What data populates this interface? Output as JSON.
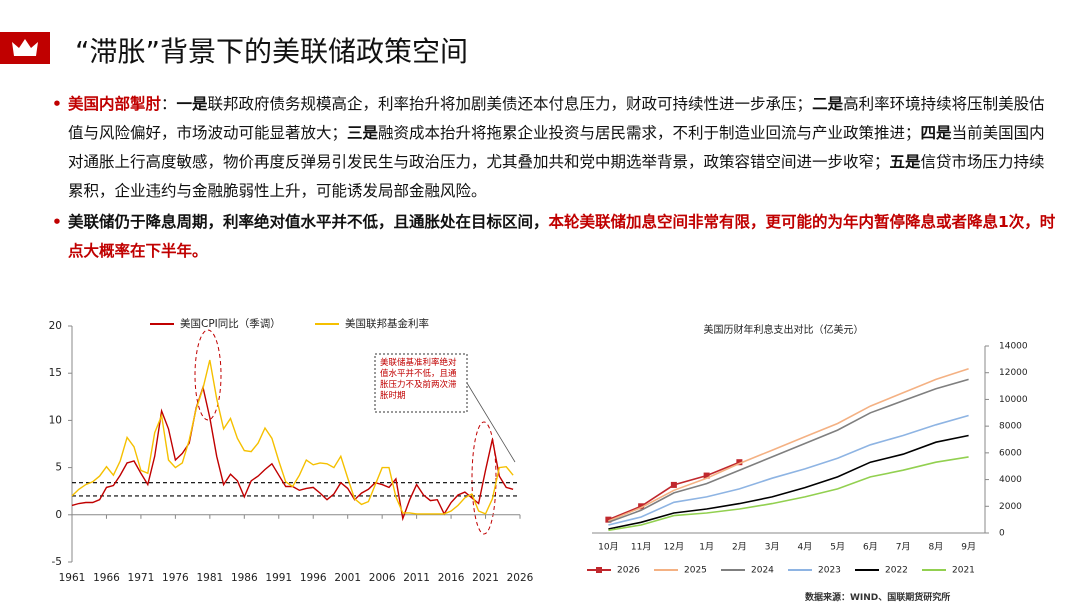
{
  "header": {
    "title": "“滞胀”背景下的美联储政策空间"
  },
  "bullets": [
    [
      {
        "text": "美国内部掣肘",
        "style": "emphasis"
      },
      {
        "text": "：",
        "style": "plain"
      },
      {
        "text": "一是",
        "style": "bold"
      },
      {
        "text": "联邦政府债务规模高企，利率抬升将加剧美债还本付息压力，财政可持续性进一步承压；",
        "style": "plain"
      },
      {
        "text": "二是",
        "style": "bold"
      },
      {
        "text": "高利率环境持续将压制美股估值与风险偏好，市场波动可能显著放大；",
        "style": "plain"
      },
      {
        "text": "三是",
        "style": "bold"
      },
      {
        "text": "融资成本抬升将拖累企业投资与居民需求，不利于制造业回流与产业政策推进；",
        "style": "plain"
      },
      {
        "text": "四是",
        "style": "bold"
      },
      {
        "text": "当前美国国内对通胀上行高度敏感，物价再度反弹易引发民生与政治压力，尤其叠加共和党中期选举背景，政策容错空间进一步收窄；",
        "style": "plain"
      },
      {
        "text": "五是",
        "style": "bold"
      },
      {
        "text": "信贷市场压力持续累积，企业违约与金融脆弱性上升，可能诱发局部金融风险。",
        "style": "plain"
      }
    ],
    [
      {
        "text": "美联储仍于降息周期，利率绝对值水平并不低，且通胀处在目标区间，",
        "style": "bold"
      },
      {
        "text": "本轮美联储加息空间非常有限，更可能的为年内暂停降息或者降息1次，时点大概率在下半年。",
        "style": "emphasis"
      }
    ]
  ],
  "chart_data": [
    {
      "type": "line",
      "legend": "top",
      "axis_side": "left",
      "annotation": "美联储基准利率绝对值水平并不低，且通胀压力不及前两次滞胀时期",
      "x": [
        1961,
        1962,
        1963,
        1964,
        1965,
        1966,
        1967,
        1968,
        1969,
        1970,
        1971,
        1972,
        1973,
        1974,
        1975,
        1976,
        1977,
        1978,
        1979,
        1980,
        1981,
        1982,
        1983,
        1984,
        1985,
        1986,
        1987,
        1988,
        1989,
        1990,
        1991,
        1992,
        1993,
        1994,
        1995,
        1996,
        1997,
        1998,
        1999,
        2000,
        2001,
        2002,
        2003,
        2004,
        2005,
        2006,
        2007,
        2008,
        2009,
        2010,
        2011,
        2012,
        2013,
        2014,
        2015,
        2016,
        2017,
        2018,
        2019,
        2020,
        2021,
        2022,
        2023,
        2024,
        2025
      ],
      "series": [
        {
          "name": "美国CPI同比（季调）",
          "color": "#c00000",
          "values": [
            1.0,
            1.2,
            1.3,
            1.3,
            1.6,
            2.9,
            3.1,
            4.2,
            5.5,
            5.7,
            4.4,
            3.2,
            6.2,
            11.0,
            9.1,
            5.8,
            6.5,
            7.6,
            11.3,
            13.5,
            10.3,
            6.2,
            3.2,
            4.3,
            3.6,
            1.9,
            3.6,
            4.1,
            4.8,
            5.4,
            4.2,
            3.0,
            3.0,
            2.6,
            2.8,
            2.9,
            2.3,
            1.6,
            2.2,
            3.4,
            2.8,
            1.6,
            2.3,
            2.7,
            3.4,
            3.2,
            2.9,
            3.8,
            -0.4,
            1.6,
            3.2,
            2.1,
            1.5,
            1.6,
            0.1,
            1.3,
            2.1,
            2.4,
            1.8,
            1.2,
            4.7,
            8.0,
            4.1,
            2.9,
            2.7
          ]
        },
        {
          "name": "美国联邦基金利率",
          "color": "#f5c000",
          "values": [
            2.0,
            2.7,
            3.2,
            3.5,
            4.1,
            5.1,
            4.2,
            5.7,
            8.2,
            7.2,
            4.7,
            4.4,
            8.7,
            10.5,
            5.8,
            5.0,
            5.5,
            7.9,
            11.2,
            13.4,
            16.4,
            12.3,
            9.1,
            10.2,
            8.1,
            6.8,
            6.7,
            7.6,
            9.2,
            8.1,
            5.7,
            3.5,
            3.0,
            4.2,
            5.8,
            5.3,
            5.5,
            5.4,
            5.0,
            6.2,
            3.9,
            1.7,
            1.1,
            1.4,
            3.2,
            5.0,
            5.0,
            1.9,
            0.2,
            0.2,
            0.1,
            0.1,
            0.1,
            0.1,
            0.1,
            0.4,
            1.0,
            1.8,
            2.2,
            0.4,
            0.1,
            1.7,
            5.0,
            5.1,
            4.2
          ]
        }
      ],
      "reference_lines": [
        2,
        3.4
      ],
      "xlim": [
        1961,
        2026
      ],
      "xticks": [
        1961,
        1966,
        1971,
        1976,
        1981,
        1986,
        1991,
        1996,
        2001,
        2006,
        2011,
        2016,
        2021,
        2026
      ],
      "ylim": [
        -5,
        20
      ],
      "yticks": [
        -5,
        0,
        5,
        10,
        15,
        20
      ]
    },
    {
      "type": "line",
      "legend": "bottom",
      "axis_side": "right",
      "title": "美国历财年利息支出对比（亿美元）",
      "categories": [
        "10月",
        "11月",
        "12月",
        "1月",
        "2月",
        "3月",
        "4月",
        "5月",
        "6月",
        "7月",
        "8月",
        "9月"
      ],
      "series": [
        {
          "name": "2026",
          "color": "#c0282d",
          "markers": true,
          "values": [
            1000,
            2000,
            3600,
            4300,
            5300,
            null,
            null,
            null,
            null,
            null,
            null,
            null
          ]
        },
        {
          "name": "2025",
          "color": "#f4b183",
          "values": [
            900,
            1900,
            3200,
            4100,
            5200,
            6200,
            7200,
            8200,
            9500,
            10500,
            11500,
            12300
          ]
        },
        {
          "name": "2024",
          "color": "#7f7f7f",
          "values": [
            800,
            1700,
            3000,
            3700,
            4700,
            5700,
            6700,
            7700,
            9000,
            9900,
            10800,
            11500
          ]
        },
        {
          "name": "2023",
          "color": "#8eb4e3",
          "values": [
            600,
            1200,
            2300,
            2700,
            3300,
            4100,
            4800,
            5600,
            6600,
            7300,
            8100,
            8800
          ]
        },
        {
          "name": "2022",
          "color": "#000000",
          "values": [
            300,
            800,
            1500,
            1800,
            2200,
            2700,
            3400,
            4200,
            5300,
            5900,
            6800,
            7300
          ]
        },
        {
          "name": "2021",
          "color": "#92d050",
          "values": [
            200,
            600,
            1300,
            1500,
            1800,
            2200,
            2700,
            3300,
            4200,
            4700,
            5300,
            5700
          ]
        }
      ],
      "ylim": [
        0,
        14000
      ],
      "yticks": [
        0,
        2000,
        4000,
        6000,
        8000,
        10000,
        12000,
        14000
      ]
    }
  ],
  "source": "数据来源：WIND、国联期货研究所"
}
